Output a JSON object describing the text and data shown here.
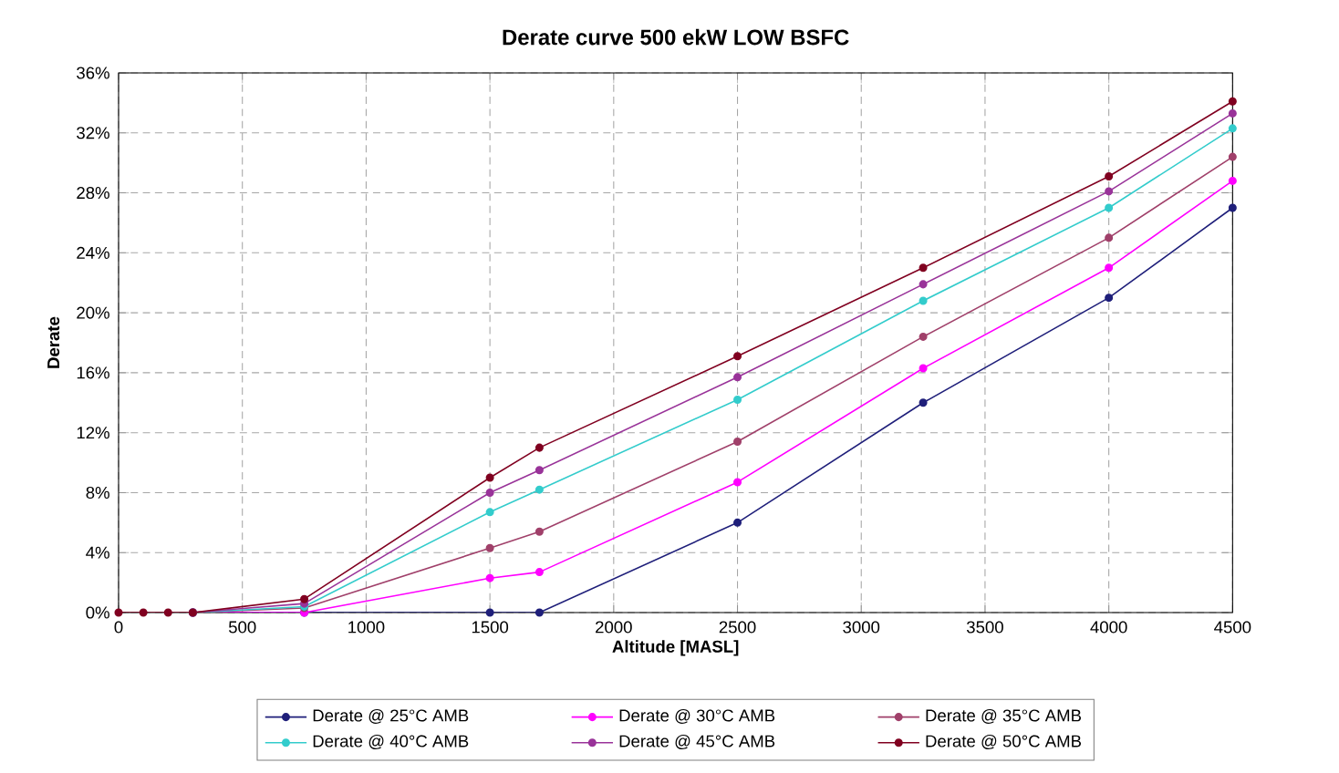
{
  "chart_data": {
    "type": "line",
    "title": "Derate curve 500 ekW LOW BSFC",
    "xlabel": "Altitude [MASL]",
    "ylabel": "Derate",
    "x": [
      0,
      100,
      200,
      300,
      750,
      1500,
      1700,
      2500,
      3250,
      4000,
      4500
    ],
    "series": [
      {
        "name": "Derate @ 25°C AMB",
        "color": "#1f1f7a",
        "values": [
          null,
          null,
          null,
          0,
          0,
          0,
          0,
          6.0,
          14.0,
          21.0,
          27.0
        ]
      },
      {
        "name": "Derate @ 30°C AMB",
        "color": "#ff00ff",
        "values": [
          null,
          null,
          null,
          0,
          0,
          2.3,
          2.7,
          8.7,
          16.3,
          23.0,
          28.8
        ]
      },
      {
        "name": "Derate @ 35°C AMB",
        "color": "#a0406a",
        "values": [
          null,
          null,
          null,
          0,
          0.3,
          4.3,
          5.4,
          11.4,
          18.4,
          25.0,
          30.4
        ]
      },
      {
        "name": "Derate @ 40°C AMB",
        "color": "#33cccc",
        "values": [
          null,
          null,
          null,
          0,
          0.4,
          6.7,
          8.2,
          14.2,
          20.8,
          27.0,
          32.3
        ]
      },
      {
        "name": "Derate @ 45°C AMB",
        "color": "#993399",
        "values": [
          null,
          null,
          null,
          0,
          0.6,
          8.0,
          9.5,
          15.7,
          21.9,
          28.1,
          33.3
        ]
      },
      {
        "name": "Derate @ 50°C AMB",
        "color": "#800020",
        "values": [
          0,
          0,
          0,
          0,
          0.9,
          9.0,
          11.0,
          17.1,
          23.0,
          29.1,
          34.1
        ]
      }
    ],
    "xlim": [
      0,
      4500
    ],
    "xticks": [
      0,
      500,
      1000,
      1500,
      2000,
      2500,
      3000,
      3500,
      4000,
      4500
    ],
    "ylim": [
      0,
      36
    ],
    "yticks": [
      {
        "value": 0,
        "label": "0%"
      },
      {
        "value": 4,
        "label": "4%"
      },
      {
        "value": 8,
        "label": "8%"
      },
      {
        "value": 12,
        "label": "12%"
      },
      {
        "value": 16,
        "label": "16%"
      },
      {
        "value": 20,
        "label": "20%"
      },
      {
        "value": 24,
        "label": "24%"
      },
      {
        "value": 28,
        "label": "28%"
      },
      {
        "value": 32,
        "label": "32%"
      },
      {
        "value": 36,
        "label": "36%"
      }
    ],
    "grid": true,
    "legend": "bottom",
    "marker": "circle",
    "line_style": "solid"
  }
}
